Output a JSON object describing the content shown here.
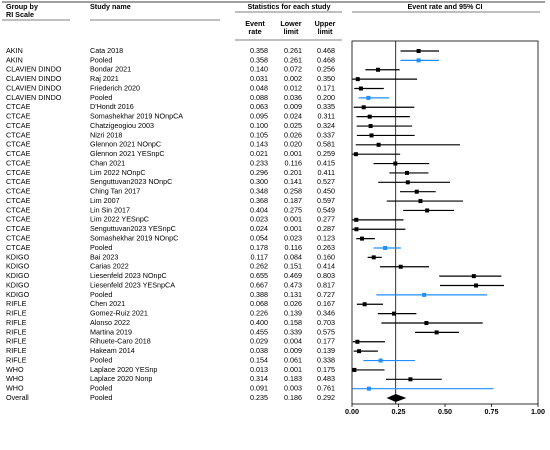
{
  "chart_data": {
    "type": "forest",
    "group_header": "Group by",
    "group_subheader": "RI Scale",
    "study_header": "Study name",
    "stats_header": "Statistics for each study",
    "columns": [
      "Event rate",
      "Lower limit",
      "Upper limit"
    ],
    "plot_header": "Event rate and 95% CI",
    "groups": [
      "AKIN",
      "AKIN",
      "CLAVIEN DINDO",
      "CLAVIEN DINDO",
      "CLAVIEN DINDO",
      "CLAVIEN DINDO",
      "CTCAE",
      "CTCAE",
      "CTCAE",
      "CTCAE",
      "CTCAE",
      "CTCAE",
      "CTCAE",
      "CTCAE",
      "CTCAE",
      "CTCAE",
      "CTCAE",
      "CTCAE",
      "CTCAE",
      "CTCAE",
      "CTCAE",
      "CTCAE",
      "KDIGO",
      "KDIGO",
      "KDIGO",
      "KDIGO",
      "KDIGO",
      "RIFLE",
      "RIFLE",
      "RIFLE",
      "RIFLE",
      "RIFLE",
      "RIFLE",
      "RIFLE",
      "WHO",
      "WHO",
      "WHO",
      "Overall"
    ],
    "studies": [
      "Cata 2018",
      "Pooled",
      "Bondar 2021",
      "Raj 2021",
      "Friederich 2020",
      "Pooled",
      "D'Hondt 2016",
      "Somashekhar 2019 NOnpCA",
      "Chatzigeogiou 2003",
      "Nizri 2018",
      "Glennon 2021 NOnpC",
      "Glennon 2021 YESnpC",
      "Chan 2021",
      "Lim 2022 NOnpC",
      "Senguttuvan2023 NOnpC",
      "Ching Tan 2017",
      "Lim 2007",
      "Lin Sin 2017",
      "Lim 2022 YESnpC",
      "Senguttuvan2023 YESnpC",
      "Somashekhar 2019 NOnpC",
      "Pooled",
      "Bai 2023",
      "Carias 2022",
      "Liesenfeld 2023 NOnpC",
      "Liesenfeld 2023 YESnpCA",
      "Pooled",
      "Chen 2021",
      "Gomez-Ruiz 2021",
      "Alonso 2022",
      "Martina 2019",
      "Rihuete-Caro 2018",
      "Hakeam 2014",
      "Pooled",
      "Laplace 2020 YESnp",
      "Laplace 2020 Nonp",
      "Pooled",
      "Pooled"
    ],
    "values": [
      0.358,
      0.358,
      0.14,
      0.031,
      0.048,
      0.088,
      0.063,
      0.095,
      0.1,
      0.105,
      0.143,
      0.021,
      0.233,
      0.296,
      0.3,
      0.348,
      0.368,
      0.404,
      0.023,
      0.024,
      0.054,
      0.178,
      0.117,
      0.262,
      0.655,
      0.667,
      0.388,
      0.068,
      0.226,
      0.4,
      0.455,
      0.029,
      0.038,
      0.154,
      0.013,
      0.314,
      0.091,
      0.235
    ],
    "value_labels": [
      "0.358",
      "0.358",
      "0.140",
      "0.031",
      "0.048",
      "0.088",
      "0.063",
      "0.095",
      "0.100",
      "0.105",
      "0.143",
      "0.021",
      "0.233",
      "0.296",
      "0.300",
      "0.348",
      "0.368",
      "0.404",
      "0.023",
      "0.024",
      "0.054",
      "0.178",
      "0.117",
      "0.262",
      "0.655",
      "0.667",
      "0.388",
      "0.068",
      "0.226",
      "0.400",
      "0.455",
      "0.029",
      "0.038",
      "0.154",
      "0.013",
      "0.314",
      "0.091",
      "0.235"
    ],
    "lower": [
      0.261,
      0.261,
      0.072,
      0.002,
      0.012,
      0.036,
      0.009,
      0.024,
      0.025,
      0.026,
      0.02,
      0.001,
      0.116,
      0.201,
      0.141,
      0.258,
      0.187,
      0.275,
      0.001,
      0.001,
      0.023,
      0.116,
      0.084,
      0.151,
      0.469,
      0.473,
      0.131,
      0.026,
      0.139,
      0.158,
      0.339,
      0.004,
      0.009,
      0.061,
      0.001,
      0.183,
      0.003,
      0.186
    ],
    "lower_labels": [
      "0.261",
      "0.261",
      "0.072",
      "0.002",
      "0.012",
      "0.036",
      "0.009",
      "0.024",
      "0.025",
      "0.026",
      "0.020",
      "0.001",
      "0.116",
      "0.201",
      "0.141",
      "0.258",
      "0.187",
      "0.275",
      "0.001",
      "0.001",
      "0.023",
      "0.116",
      "0.084",
      "0.151",
      "0.469",
      "0.473",
      "0.131",
      "0.026",
      "0.139",
      "0.158",
      "0.339",
      "0.004",
      "0.009",
      "0.061",
      "0.001",
      "0.183",
      "0.003",
      "0.186"
    ],
    "upper": [
      0.468,
      0.468,
      0.256,
      0.35,
      0.171,
      0.2,
      0.335,
      0.311,
      0.324,
      0.337,
      0.581,
      0.259,
      0.415,
      0.411,
      0.527,
      0.45,
      0.597,
      0.549,
      0.277,
      0.287,
      0.123,
      0.263,
      0.16,
      0.414,
      0.803,
      0.817,
      0.727,
      0.167,
      0.346,
      0.703,
      0.575,
      0.177,
      0.139,
      0.338,
      0.175,
      0.483,
      0.761,
      0.292
    ],
    "upper_labels": [
      "0.468",
      "0.468",
      "0.256",
      "0.350",
      "0.171",
      "0.200",
      "0.335",
      "0.311",
      "0.324",
      "0.337",
      "0.581",
      "0.259",
      "0.415",
      "0.411",
      "0.527",
      "0.450",
      "0.597",
      "0.549",
      "0.277",
      "0.287",
      "0.123",
      "0.263",
      "0.160",
      "0.414",
      "0.803",
      "0.817",
      "0.727",
      "0.167",
      "0.346",
      "0.703",
      "0.575",
      "0.177",
      "0.139",
      "0.338",
      "0.175",
      "0.483",
      "0.761",
      "0.292"
    ],
    "colors": [
      "#000000",
      "#1e8fff",
      "#000000",
      "#000000",
      "#000000",
      "#1e8fff",
      "#000000",
      "#000000",
      "#000000",
      "#000000",
      "#000000",
      "#000000",
      "#000000",
      "#000000",
      "#000000",
      "#000000",
      "#000000",
      "#000000",
      "#000000",
      "#000000",
      "#000000",
      "#1e8fff",
      "#000000",
      "#000000",
      "#000000",
      "#000000",
      "#1e8fff",
      "#000000",
      "#000000",
      "#000000",
      "#000000",
      "#000000",
      "#000000",
      "#1e8fff",
      "#000000",
      "#000000",
      "#1e8fff",
      "#000000"
    ],
    "markers": [
      "square",
      "square",
      "square",
      "square",
      "square",
      "square",
      "square",
      "square",
      "square",
      "square",
      "square",
      "square",
      "square",
      "square",
      "square",
      "square",
      "square",
      "square",
      "square",
      "square",
      "square",
      "square",
      "square",
      "square",
      "square",
      "square",
      "square",
      "square",
      "square",
      "square",
      "square",
      "square",
      "square",
      "square",
      "square",
      "square",
      "square",
      "diamond"
    ],
    "xlim": [
      0,
      1
    ],
    "xticks": [
      {
        "value": 0,
        "label": "0.00"
      },
      {
        "value": 0.25,
        "label": "0.25"
      },
      {
        "value": 0.5,
        "label": "0.50"
      },
      {
        "value": 0.75,
        "label": "0.75"
      },
      {
        "value": 1,
        "label": "1.00"
      }
    ]
  }
}
